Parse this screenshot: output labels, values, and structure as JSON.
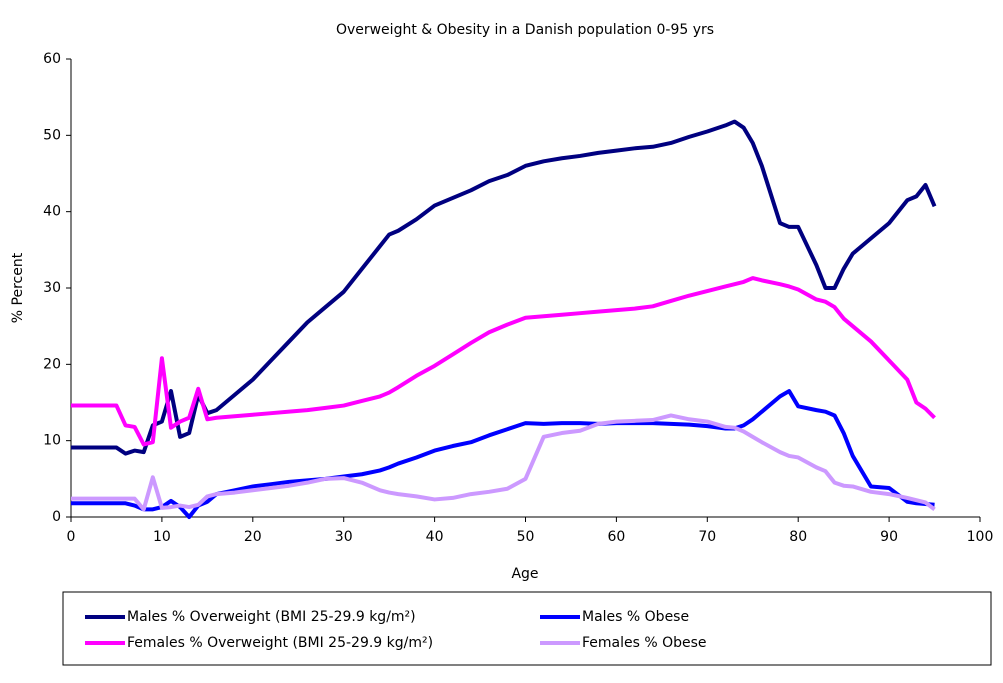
{
  "chart_data": {
    "type": "line",
    "title": "Overweight & Obesity in a Danish population 0-95 yrs",
    "x_label": "Age",
    "y_label": "% Percent",
    "xlim": [
      0,
      100
    ],
    "xticks": [
      0,
      10,
      20,
      30,
      40,
      50,
      60,
      70,
      80,
      90,
      100
    ],
    "ylim": [
      0,
      60
    ],
    "yticks": [
      0,
      10,
      20,
      30,
      40,
      50,
      60
    ],
    "grid": false,
    "legend": "bottom",
    "x": [
      0,
      2,
      4,
      5,
      6,
      7,
      8,
      9,
      10,
      11,
      12,
      13,
      14,
      15,
      16,
      18,
      20,
      22,
      24,
      26,
      28,
      30,
      32,
      34,
      35,
      36,
      38,
      40,
      42,
      44,
      46,
      48,
      50,
      52,
      54,
      56,
      58,
      60,
      62,
      64,
      66,
      68,
      70,
      72,
      73,
      74,
      75,
      76,
      78,
      79,
      80,
      82,
      83,
      84,
      85,
      86,
      88,
      90,
      92,
      93,
      94,
      95
    ],
    "series": [
      {
        "name": "Males % Overweight (BMI 25-29.9 kg/m²)",
        "color": "#000080",
        "values": [
          9.1,
          9.1,
          9.1,
          9.1,
          8.3,
          8.7,
          8.5,
          12,
          12.5,
          16.5,
          10.5,
          11,
          16,
          13.6,
          14,
          16,
          18,
          20.5,
          23,
          25.5,
          27.5,
          29.5,
          32.5,
          35.5,
          37,
          37.5,
          39,
          40.8,
          41.8,
          42.8,
          44,
          44.8,
          46,
          46.6,
          47,
          47.3,
          47.7,
          48,
          48.3,
          48.5,
          49,
          49.8,
          50.5,
          51.3,
          51.8,
          51,
          49,
          46,
          38.5,
          38,
          38,
          33,
          30,
          30,
          32.5,
          34.5,
          36.5,
          38.5,
          41.5,
          42,
          43.5,
          40.7
        ]
      },
      {
        "name": "Males % Obese",
        "color": "#0000FF",
        "values": [
          1.8,
          1.8,
          1.8,
          1.8,
          1.8,
          1.5,
          1,
          1,
          1.3,
          2.1,
          1.3,
          0,
          1.5,
          2,
          3,
          3.5,
          4,
          4.3,
          4.6,
          4.8,
          5,
          5.3,
          5.6,
          6.1,
          6.5,
          7,
          7.8,
          8.7,
          9.3,
          9.8,
          10.7,
          11.5,
          12.3,
          12.2,
          12.3,
          12.3,
          12.2,
          12.3,
          12.3,
          12.3,
          12.2,
          12.1,
          11.9,
          11.6,
          11.6,
          12,
          12.8,
          13.8,
          15.8,
          16.5,
          14.5,
          14,
          13.8,
          13.3,
          11,
          8,
          4,
          3.8,
          2,
          1.8,
          1.7,
          1.6
        ]
      },
      {
        "name": "Females % Overweight (BMI 25-29.9 kg/m²)",
        "color": "#FF00FF",
        "values": [
          14.6,
          14.6,
          14.6,
          14.6,
          12,
          11.8,
          9.5,
          9.8,
          20.8,
          11.7,
          12.5,
          13,
          16.8,
          12.8,
          13,
          13.2,
          13.4,
          13.6,
          13.8,
          14,
          14.3,
          14.6,
          15.2,
          15.8,
          16.3,
          17,
          18.5,
          19.8,
          21.3,
          22.8,
          24.2,
          25.2,
          26.1,
          26.3,
          26.5,
          26.7,
          26.9,
          27.1,
          27.3,
          27.6,
          28.3,
          29,
          29.6,
          30.2,
          30.5,
          30.8,
          31.3,
          31,
          30.5,
          30.2,
          29.8,
          28.5,
          28.2,
          27.5,
          26,
          25,
          23,
          20.5,
          18,
          15,
          14.2,
          13
        ]
      },
      {
        "name": "Females % Obese",
        "color": "#CC99FF",
        "values": [
          2.4,
          2.4,
          2.4,
          2.4,
          2.4,
          2.4,
          1,
          5.2,
          1.2,
          1.3,
          1.5,
          1.3,
          1.6,
          2.7,
          3,
          3.2,
          3.5,
          3.8,
          4.1,
          4.5,
          5,
          5.1,
          4.5,
          3.5,
          3.2,
          3,
          2.7,
          2.3,
          2.5,
          3,
          3.3,
          3.7,
          5,
          10.5,
          11,
          11.3,
          12.2,
          12.5,
          12.6,
          12.7,
          13.3,
          12.8,
          12.5,
          11.8,
          11.7,
          11.2,
          10.5,
          9.8,
          8.5,
          8,
          7.8,
          6.5,
          6,
          4.5,
          4.1,
          4,
          3.3,
          3,
          2.5,
          2.2,
          1.9,
          1
        ]
      }
    ]
  }
}
